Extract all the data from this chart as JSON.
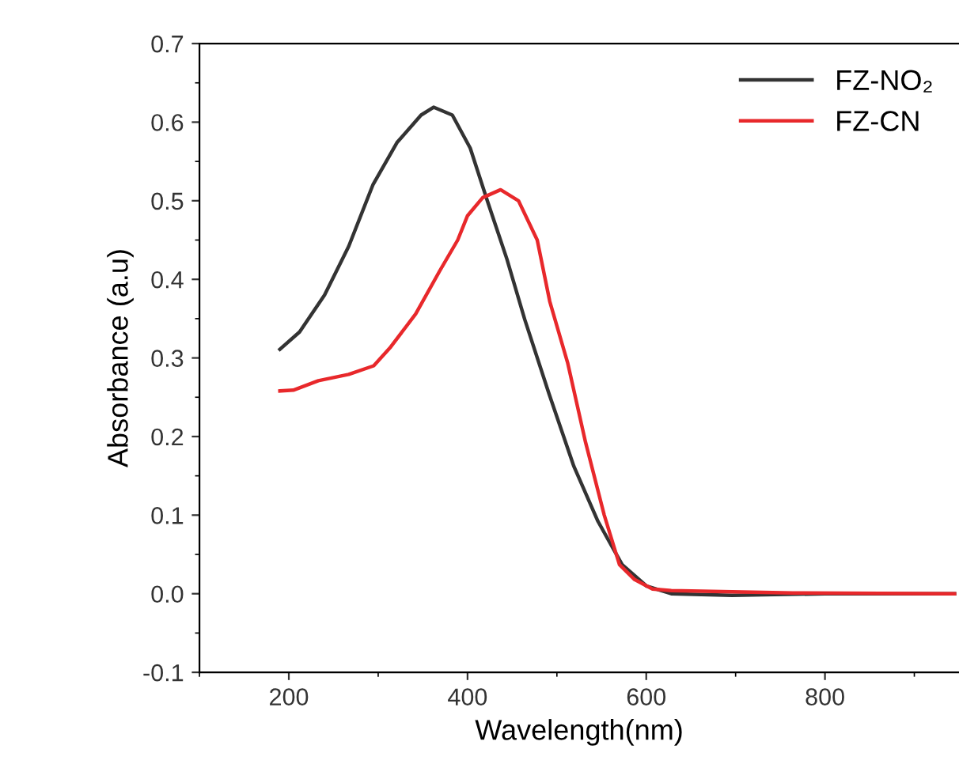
{
  "chart_data": {
    "type": "line",
    "xlabel": "Wavelength(nm)",
    "ylabel": "Absorbance (a.u)",
    "xlim": [
      100,
      950
    ],
    "xticks": [
      200,
      400,
      600,
      800
    ],
    "ylim": [
      -0.1,
      0.7
    ],
    "yticks": [
      -0.1,
      {
        "value": 0,
        "label": "0.0"
      },
      0.1,
      0.2,
      0.3,
      0.4,
      0.5,
      0.6,
      0.7
    ],
    "legend": "top right",
    "grid": false,
    "marker": "none",
    "line_style": "solid",
    "series": [
      {
        "name": "FZ-NO₂",
        "color": "#333333",
        "x": [
          190,
          212,
          240,
          267,
          294,
          321,
          348,
          362,
          383,
          403,
          423,
          444,
          464,
          491,
          519,
          546,
          573,
          600,
          628,
          696,
          800,
          945
        ],
        "values": [
          0.311,
          0.333,
          0.38,
          0.442,
          0.52,
          0.574,
          0.609,
          0.619,
          0.609,
          0.567,
          0.497,
          0.426,
          0.349,
          0.255,
          0.162,
          0.092,
          0.037,
          0.01,
          0.0,
          -0.002,
          0.0,
          0.0
        ]
      },
      {
        "name": "FZ-CN",
        "color": "#e8282b",
        "x": [
          190,
          205,
          233,
          267,
          295,
          314,
          342,
          369,
          389,
          400,
          417,
          437,
          457,
          478,
          492,
          512,
          532,
          553,
          570,
          587,
          607,
          628,
          764,
          945
        ],
        "values": [
          0.258,
          0.259,
          0.271,
          0.279,
          0.29,
          0.314,
          0.356,
          0.411,
          0.45,
          0.481,
          0.504,
          0.514,
          0.5,
          0.45,
          0.372,
          0.294,
          0.193,
          0.1,
          0.037,
          0.018,
          0.006,
          0.004,
          0.001,
          0.0
        ]
      }
    ]
  }
}
